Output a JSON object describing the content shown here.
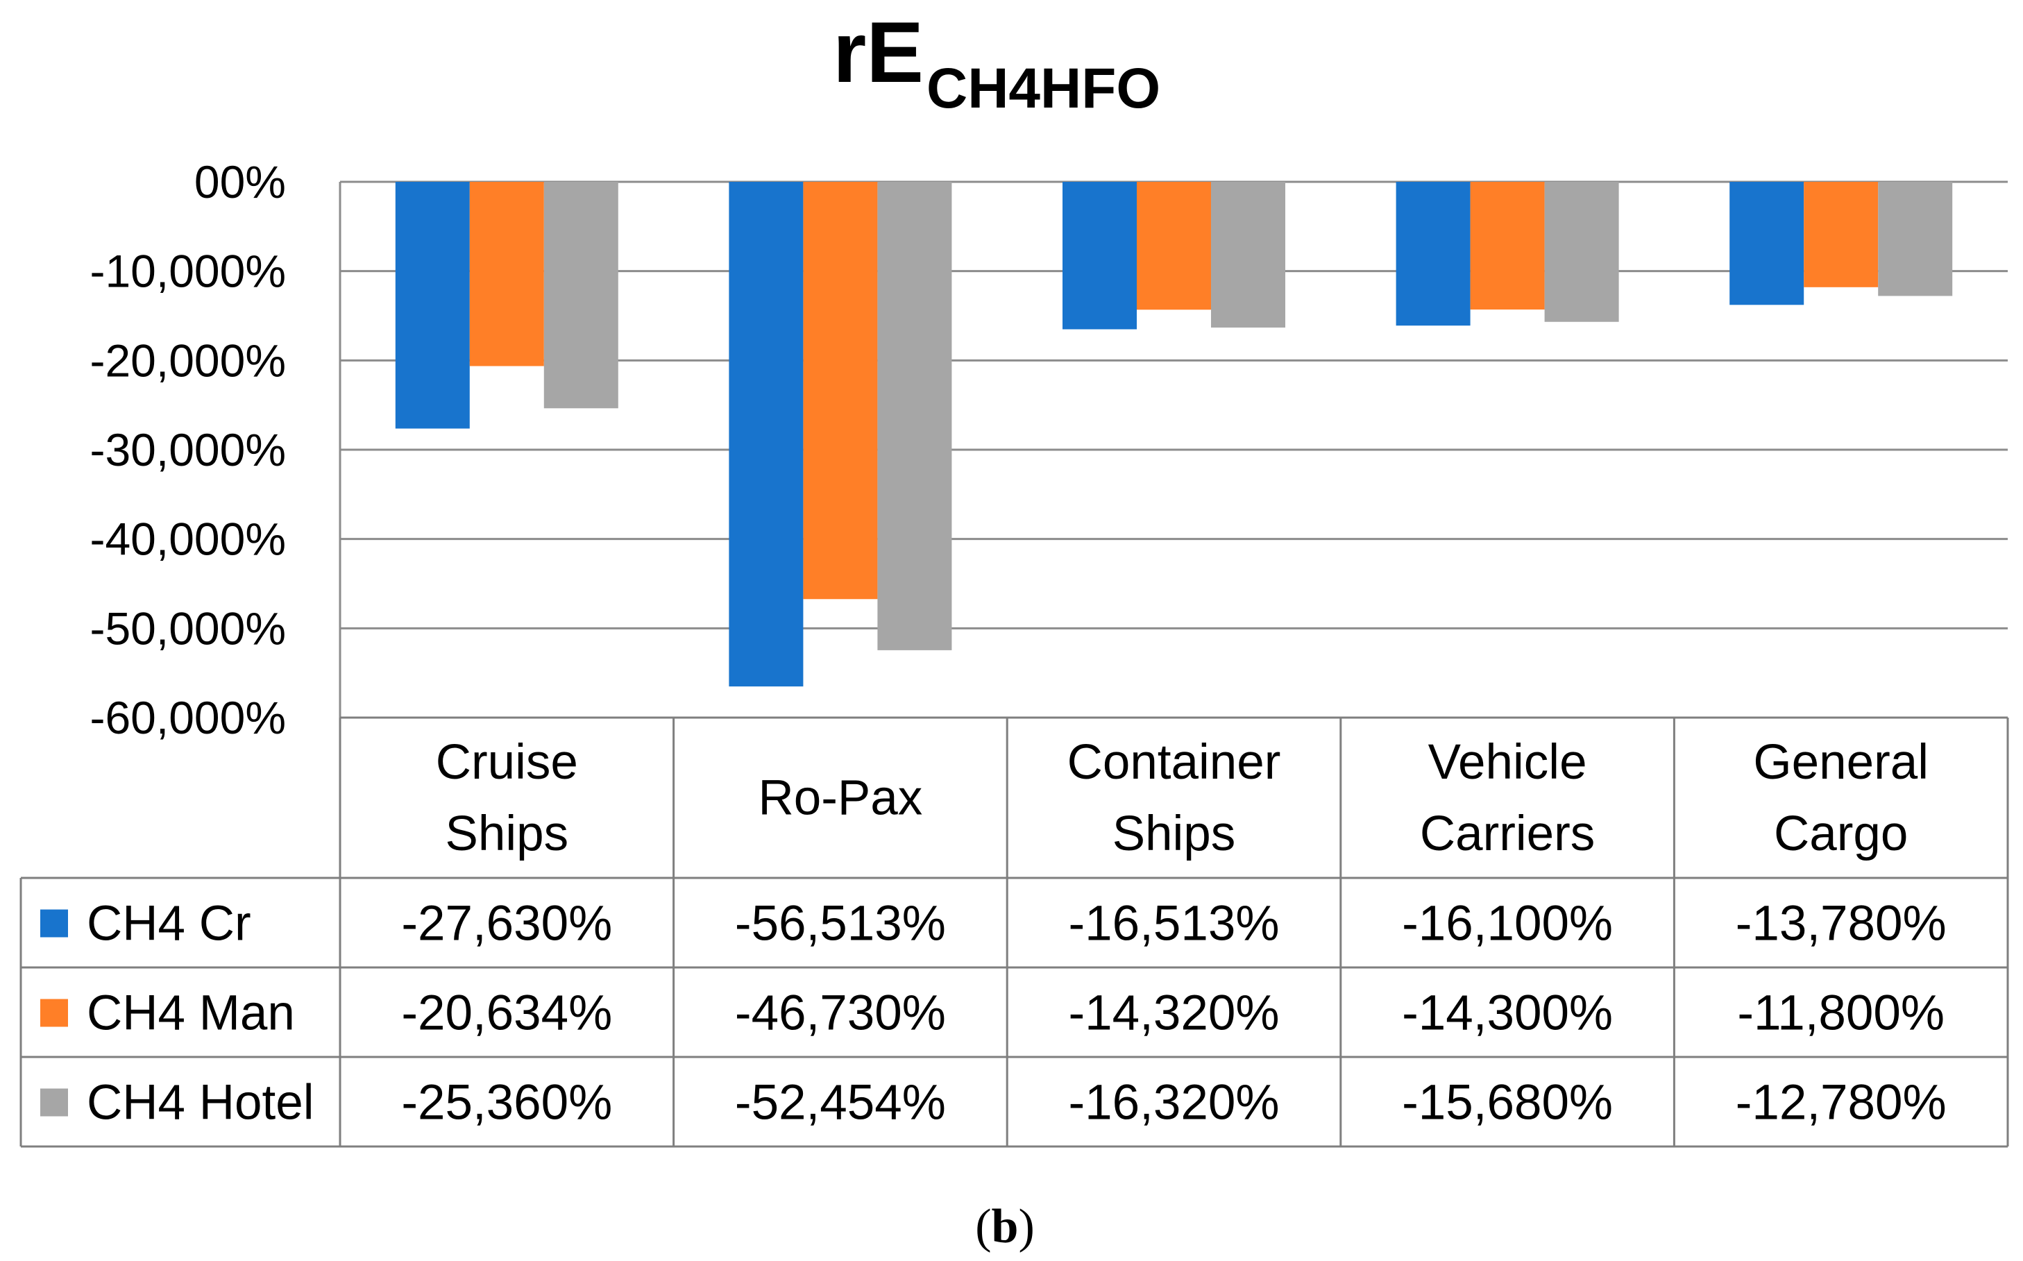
{
  "chart_data": {
    "type": "bar",
    "title": "rE",
    "title_subscript": "CH4HFO",
    "xlabel": "",
    "ylabel": "",
    "ylim": [
      -60,
      0
    ],
    "y_ticks": [
      0,
      -10,
      -20,
      -30,
      -40,
      -50,
      -60
    ],
    "y_tick_labels": [
      "00%",
      "-10,000%",
      "-20,000%",
      "-30,000%",
      "-40,000%",
      "-50,000%",
      "-60,000%"
    ],
    "grid": true,
    "legend": "data-table-left",
    "categories": [
      [
        "Cruise",
        "Ships"
      ],
      [
        "Ro-Pax"
      ],
      [
        "Container",
        "Ships"
      ],
      [
        "Vehicle",
        "Carriers"
      ],
      [
        "General",
        "Cargo"
      ]
    ],
    "series": [
      {
        "name": "CH4 Cr",
        "color": "#1874CD",
        "values": [
          -27.63,
          -56.513,
          -16.513,
          -16.1,
          -13.78
        ],
        "labels": [
          "-27,630%",
          "-56,513%",
          "-16,513%",
          "-16,100%",
          "-13,780%"
        ]
      },
      {
        "name": "CH4 Man",
        "color": "#FF7F27",
        "values": [
          -20.634,
          -46.73,
          -14.32,
          -14.3,
          -11.8
        ],
        "labels": [
          "-20,634%",
          "-46,730%",
          "-14,320%",
          "-14,300%",
          "-11,800%"
        ]
      },
      {
        "name": "CH4 Hotel",
        "color": "#A6A6A6",
        "values": [
          -25.36,
          -52.454,
          -16.32,
          -15.68,
          -12.78
        ],
        "labels": [
          "-25,360%",
          "-52,454%",
          "-16,320%",
          "-15,680%",
          "-12,780%"
        ]
      }
    ],
    "caption_open": "(",
    "caption_letter": "b",
    "caption_close": ")"
  }
}
